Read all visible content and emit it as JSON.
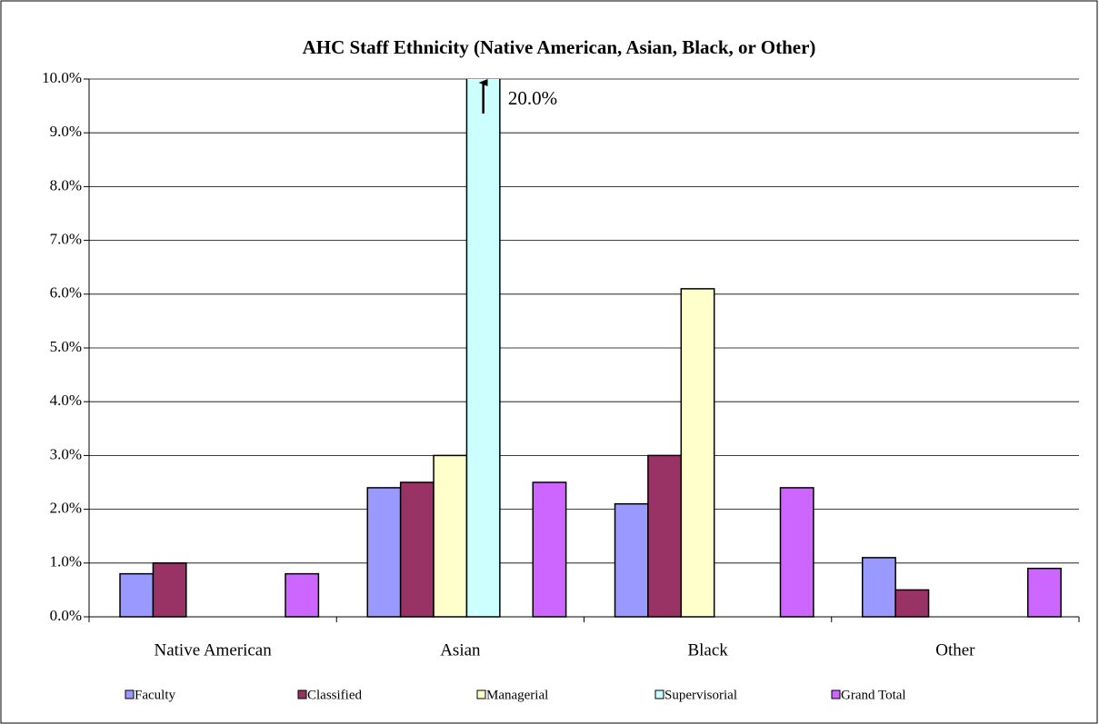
{
  "chart_data": {
    "type": "bar",
    "title": "AHC Staff Ethnicity (Native American, Asian, Black, or Other)",
    "categories": [
      "Native American",
      "Asian",
      "Black",
      "Other"
    ],
    "series": [
      {
        "name": "Faculty",
        "color": "#9999ff",
        "values": [
          0.8,
          2.4,
          2.1,
          1.1
        ]
      },
      {
        "name": "Classified",
        "color": "#993366",
        "values": [
          1.0,
          2.5,
          3.0,
          0.5
        ]
      },
      {
        "name": "Managerial",
        "color": "#ffffcc",
        "values": [
          0,
          3.0,
          6.1,
          0
        ]
      },
      {
        "name": "Supervisorial",
        "color": "#ccffff",
        "values": [
          0,
          20.0,
          0,
          0
        ],
        "value_labels": [
          null,
          "20.0%",
          null,
          null
        ]
      },
      {
        "name": "Grand Total",
        "color": "#cc66ff",
        "values": [
          0.8,
          2.5,
          2.4,
          0.9
        ]
      }
    ],
    "ylim": [
      0,
      10
    ],
    "yticks": [
      {
        "value": 0,
        "label": "0.0%"
      },
      {
        "value": 1,
        "label": "1.0%"
      },
      {
        "value": 2,
        "label": "2.0%"
      },
      {
        "value": 3,
        "label": "3.0%"
      },
      {
        "value": 4,
        "label": "4.0%"
      },
      {
        "value": 5,
        "label": "5.0%"
      },
      {
        "value": 6,
        "label": "6.0%"
      },
      {
        "value": 7,
        "label": "7.0%"
      },
      {
        "value": 8,
        "label": "8.0%"
      },
      {
        "value": 9,
        "label": "9.0%"
      },
      {
        "value": 10,
        "label": "10.0%"
      }
    ],
    "grid": true
  }
}
